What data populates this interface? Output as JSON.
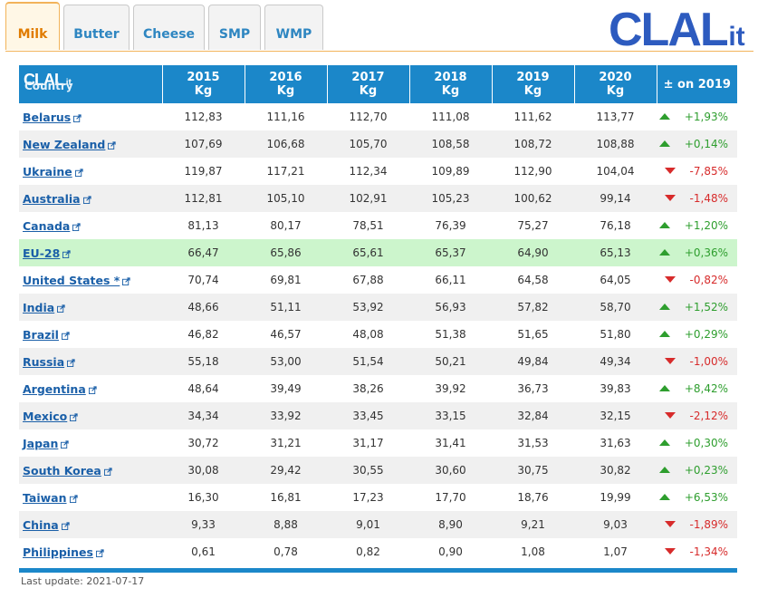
{
  "tabs": [
    {
      "label": "Milk",
      "active": true
    },
    {
      "label": "Butter",
      "active": false
    },
    {
      "label": "Cheese",
      "active": false
    },
    {
      "label": "SMP",
      "active": false
    },
    {
      "label": "WMP",
      "active": false
    }
  ],
  "logo": {
    "text": "CLAL",
    "suffix": ".it",
    "color": "#2d5bbf"
  },
  "table": {
    "header": {
      "country": "Country",
      "years": [
        {
          "year": "2015",
          "unit": "Kg"
        },
        {
          "year": "2016",
          "unit": "Kg"
        },
        {
          "year": "2017",
          "unit": "Kg"
        },
        {
          "year": "2018",
          "unit": "Kg"
        },
        {
          "year": "2019",
          "unit": "Kg"
        },
        {
          "year": "2020",
          "unit": "Kg"
        }
      ],
      "change": "± on 2019"
    },
    "rows": [
      {
        "country": "Belarus",
        "values": [
          "112,83",
          "111,16",
          "112,70",
          "111,08",
          "111,62",
          "113,77"
        ],
        "change": "+1,93%",
        "dir": "up"
      },
      {
        "country": "New Zealand",
        "values": [
          "107,69",
          "106,68",
          "105,70",
          "108,58",
          "108,72",
          "108,88"
        ],
        "change": "+0,14%",
        "dir": "up"
      },
      {
        "country": "Ukraine",
        "values": [
          "119,87",
          "117,21",
          "112,34",
          "109,89",
          "112,90",
          "104,04"
        ],
        "change": "-7,85%",
        "dir": "down"
      },
      {
        "country": "Australia",
        "values": [
          "112,81",
          "105,10",
          "102,91",
          "105,23",
          "100,62",
          "99,14"
        ],
        "change": "-1,48%",
        "dir": "down"
      },
      {
        "country": "Canada",
        "values": [
          "81,13",
          "80,17",
          "78,51",
          "76,39",
          "75,27",
          "76,18"
        ],
        "change": "+1,20%",
        "dir": "up"
      },
      {
        "country": "EU-28",
        "values": [
          "66,47",
          "65,86",
          "65,61",
          "65,37",
          "64,90",
          "65,13"
        ],
        "change": "+0,36%",
        "dir": "up",
        "highlight": true
      },
      {
        "country": "United States *",
        "values": [
          "70,74",
          "69,81",
          "67,88",
          "66,11",
          "64,58",
          "64,05"
        ],
        "change": "-0,82%",
        "dir": "down"
      },
      {
        "country": "India",
        "values": [
          "48,66",
          "51,11",
          "53,92",
          "56,93",
          "57,82",
          "58,70"
        ],
        "change": "+1,52%",
        "dir": "up"
      },
      {
        "country": "Brazil",
        "values": [
          "46,82",
          "46,57",
          "48,08",
          "51,38",
          "51,65",
          "51,80"
        ],
        "change": "+0,29%",
        "dir": "up"
      },
      {
        "country": "Russia",
        "values": [
          "55,18",
          "53,00",
          "51,54",
          "50,21",
          "49,84",
          "49,34"
        ],
        "change": "-1,00%",
        "dir": "down"
      },
      {
        "country": "Argentina",
        "values": [
          "48,64",
          "39,49",
          "38,26",
          "39,92",
          "36,73",
          "39,83"
        ],
        "change": "+8,42%",
        "dir": "up"
      },
      {
        "country": "Mexico",
        "values": [
          "34,34",
          "33,92",
          "33,45",
          "33,15",
          "32,84",
          "32,15"
        ],
        "change": "-2,12%",
        "dir": "down"
      },
      {
        "country": "Japan",
        "values": [
          "30,72",
          "31,21",
          "31,17",
          "31,41",
          "31,53",
          "31,63"
        ],
        "change": "+0,30%",
        "dir": "up"
      },
      {
        "country": "South Korea",
        "values": [
          "30,08",
          "29,42",
          "30,55",
          "30,60",
          "30,75",
          "30,82"
        ],
        "change": "+0,23%",
        "dir": "up"
      },
      {
        "country": "Taiwan",
        "values": [
          "16,30",
          "16,81",
          "17,23",
          "17,70",
          "18,76",
          "19,99"
        ],
        "change": "+6,53%",
        "dir": "up"
      },
      {
        "country": "China",
        "values": [
          "9,33",
          "8,88",
          "9,01",
          "8,90",
          "9,21",
          "9,03"
        ],
        "change": "-1,89%",
        "dir": "down"
      },
      {
        "country": "Philippines",
        "values": [
          "0,61",
          "0,78",
          "0,82",
          "0,90",
          "1,08",
          "1,07"
        ],
        "change": "-1,34%",
        "dir": "down"
      }
    ]
  },
  "footer": {
    "last_update": "Last update: 2021-07-17"
  },
  "icons": {
    "external_link": "external-link-icon",
    "up": "arrow-up-icon",
    "down": "arrow-down-icon"
  }
}
